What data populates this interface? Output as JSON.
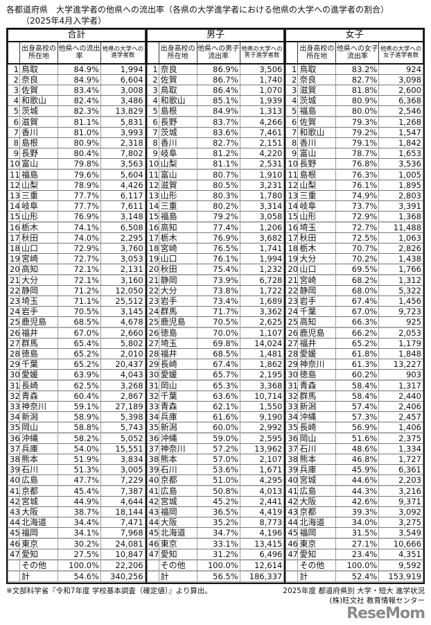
{
  "title": "各都道府県　大学進学者の他県への流出率（各県の大学進学者における他県の大学への進学者の割合）",
  "subtitle": "（2025年4月入学者）",
  "sections": [
    {
      "label": "合計",
      "columns": [
        "出身高校の所在地",
        "他県への流出率",
        "他県の大学への進学者数"
      ],
      "rows": [
        [
          "1",
          "鳥取",
          "84.9%",
          "1,994"
        ],
        [
          "2",
          "奈良",
          "84.9%",
          "6,604"
        ],
        [
          "3",
          "佐賀",
          "83.4%",
          "3,008"
        ],
        [
          "4",
          "和歌山",
          "82.4%",
          "3,486"
        ],
        [
          "5",
          "茨城",
          "82.3%",
          "13,829"
        ],
        [
          "6",
          "滋賀",
          "81.1%",
          "5,831"
        ],
        [
          "7",
          "香川",
          "81.0%",
          "3,993"
        ],
        [
          "8",
          "島根",
          "80.9%",
          "2,318"
        ],
        [
          "9",
          "長野",
          "80.4%",
          "7,802"
        ],
        [
          "10",
          "富山",
          "79.8%",
          "3,563"
        ],
        [
          "11",
          "福島",
          "79.6%",
          "5,604"
        ],
        [
          "12",
          "山梨",
          "78.9%",
          "4,426"
        ],
        [
          "13",
          "三重",
          "77.7%",
          "6,117"
        ],
        [
          "14",
          "岐阜",
          "77.7%",
          "7,611"
        ],
        [
          "15",
          "山形",
          "76.9%",
          "3,148"
        ],
        [
          "16",
          "栃木",
          "74.1%",
          "6,508"
        ],
        [
          "17",
          "秋田",
          "74.0%",
          "2,295"
        ],
        [
          "18",
          "山口",
          "72.9%",
          "3,760"
        ],
        [
          "19",
          "宮崎",
          "72.7%",
          "3,053"
        ],
        [
          "20",
          "高知",
          "72.1%",
          "2,131"
        ],
        [
          "21",
          "大分",
          "72.1%",
          "3,160"
        ],
        [
          "22",
          "静岡",
          "71.2%",
          "12,050"
        ],
        [
          "23",
          "埼玉",
          "71.1%",
          "25,512"
        ],
        [
          "24",
          "岩手",
          "70.5%",
          "3,145"
        ],
        [
          "25",
          "鹿児島",
          "68.5%",
          "4,678"
        ],
        [
          "26",
          "福井",
          "67.0%",
          "2,660"
        ],
        [
          "27",
          "群馬",
          "65.4%",
          "5,802"
        ],
        [
          "28",
          "徳島",
          "65.2%",
          "2,010"
        ],
        [
          "29",
          "千葉",
          "65.2%",
          "20,437"
        ],
        [
          "30",
          "愛媛",
          "63.9%",
          "4,043"
        ],
        [
          "31",
          "長崎",
          "62.5%",
          "3,268"
        ],
        [
          "32",
          "青森",
          "60.4%",
          "2,867"
        ],
        [
          "33",
          "神奈川",
          "59.1%",
          "27,189"
        ],
        [
          "34",
          "新潟",
          "58.9%",
          "5,398"
        ],
        [
          "35",
          "岡山",
          "58.8%",
          "5,743"
        ],
        [
          "36",
          "沖縄",
          "58.2%",
          "5,052"
        ],
        [
          "37",
          "兵庫",
          "54.0%",
          "15,551"
        ],
        [
          "38",
          "熊本",
          "51.9%",
          "3,834"
        ],
        [
          "39",
          "石川",
          "51.3%",
          "3,005"
        ],
        [
          "40",
          "広島",
          "47.7%",
          "7,229"
        ],
        [
          "41",
          "京都",
          "45.4%",
          "7,387"
        ],
        [
          "42",
          "宮城",
          "44.9%",
          "4,644"
        ],
        [
          "43",
          "大阪",
          "38.7%",
          "18,144"
        ],
        [
          "44",
          "北海道",
          "34.4%",
          "7,471"
        ],
        [
          "45",
          "福岡",
          "34.1%",
          "7,968"
        ],
        [
          "46",
          "東京",
          "30.2%",
          "24,081"
        ],
        [
          "47",
          "愛知",
          "27.5%",
          "10,847"
        ],
        [
          "",
          "その他",
          "100.0%",
          "22,206"
        ],
        [
          "",
          "計",
          "54.6%",
          "340,256"
        ]
      ]
    },
    {
      "label": "男子",
      "columns": [
        "出身高校の所在地",
        "他県への男子流出率",
        "他県の大学への男子進学者数"
      ],
      "rows": [
        [
          "1",
          "奈良",
          "86.9%",
          "3,506"
        ],
        [
          "2",
          "佐賀",
          "86.7%",
          "1,740"
        ],
        [
          "3",
          "鳥取",
          "86.4%",
          "1,070"
        ],
        [
          "4",
          "和歌山",
          "85.1%",
          "1,939"
        ],
        [
          "5",
          "島根",
          "84.9%",
          "1,313"
        ],
        [
          "6",
          "長野",
          "83.7%",
          "4,266"
        ],
        [
          "7",
          "茨城",
          "83.6%",
          "7,461"
        ],
        [
          "8",
          "香川",
          "82.7%",
          "2,151"
        ],
        [
          "9",
          "岐阜",
          "81.2%",
          "4,220"
        ],
        [
          "10",
          "山梨",
          "81.1%",
          "2,531"
        ],
        [
          "11",
          "富山",
          "80.7%",
          "1,910"
        ],
        [
          "12",
          "滋賀",
          "80.5%",
          "3,231"
        ],
        [
          "13",
          "山形",
          "80.3%",
          "1,780"
        ],
        [
          "14",
          "三重",
          "80.2%",
          "3,314"
        ],
        [
          "15",
          "福島",
          "79.2%",
          "3,058"
        ],
        [
          "16",
          "高知",
          "77.4%",
          "1,206"
        ],
        [
          "17",
          "栃木",
          "76.9%",
          "3,682"
        ],
        [
          "18",
          "宮崎",
          "76.5%",
          "1,741"
        ],
        [
          "19",
          "山口",
          "76.1%",
          "1,994"
        ],
        [
          "20",
          "秋田",
          "75.4%",
          "1,232"
        ],
        [
          "21",
          "静岡",
          "73.9%",
          "6,728"
        ],
        [
          "22",
          "大分",
          "73.8%",
          "1,722"
        ],
        [
          "23",
          "岩手",
          "73.4%",
          "1,689"
        ],
        [
          "24",
          "群馬",
          "71.7%",
          "3,362"
        ],
        [
          "25",
          "鹿児島",
          "70.5%",
          "2,625"
        ],
        [
          "26",
          "徳島",
          "70.0%",
          "1,107"
        ],
        [
          "27",
          "埼玉",
          "69.8%",
          "14,024"
        ],
        [
          "28",
          "福井",
          "68.5%",
          "1,481"
        ],
        [
          "29",
          "長崎",
          "67.4%",
          "1,862"
        ],
        [
          "30",
          "愛媛",
          "65.7%",
          "2,195"
        ],
        [
          "31",
          "岡山",
          "65.3%",
          "3,368"
        ],
        [
          "32",
          "千葉",
          "63.6%",
          "10,714"
        ],
        [
          "33",
          "青森",
          "62.1%",
          "1,550"
        ],
        [
          "34",
          "兵庫",
          "61.6%",
          "9,190"
        ],
        [
          "35",
          "新潟",
          "60.0%",
          "2,992"
        ],
        [
          "36",
          "沖縄",
          "59.0%",
          "2,595"
        ],
        [
          "37",
          "神奈川",
          "57.2%",
          "13,962"
        ],
        [
          "38",
          "熊本",
          "57.0%",
          "2,107"
        ],
        [
          "39",
          "石川",
          "53.6%",
          "1,671"
        ],
        [
          "40",
          "京都",
          "51.0%",
          "4,295"
        ],
        [
          "41",
          "広島",
          "50.8%",
          "4,013"
        ],
        [
          "42",
          "宮城",
          "45.2%",
          "2,441"
        ],
        [
          "43",
          "福岡",
          "36.5%",
          "4,419"
        ],
        [
          "44",
          "大阪",
          "35.2%",
          "8,773"
        ],
        [
          "45",
          "北海道",
          "34.7%",
          "4,196"
        ],
        [
          "46",
          "東京",
          "33.1%",
          "13,415"
        ],
        [
          "47",
          "愛知",
          "31.2%",
          "6,496"
        ],
        [
          "",
          "その他",
          "100.0%",
          "12,614"
        ],
        [
          "",
          "計",
          "56.5%",
          "186,337"
        ]
      ]
    },
    {
      "label": "女子",
      "columns": [
        "出身高校の所在地",
        "他県への女子流出率",
        "他県の大学への女子進学者数"
      ],
      "rows": [
        [
          "1",
          "鳥取",
          "83.2%",
          "924"
        ],
        [
          "2",
          "奈良",
          "82.7%",
          "3,098"
        ],
        [
          "3",
          "滋賀",
          "81.8%",
          "2,600"
        ],
        [
          "4",
          "茨城",
          "80.9%",
          "6,368"
        ],
        [
          "5",
          "福島",
          "80.0%",
          "2,546"
        ],
        [
          "6",
          "佐賀",
          "79.3%",
          "1,268"
        ],
        [
          "7",
          "和歌山",
          "79.2%",
          "1,547"
        ],
        [
          "8",
          "香川",
          "79.1%",
          "1,842"
        ],
        [
          "9",
          "富山",
          "78.7%",
          "1,653"
        ],
        [
          "10",
          "長野",
          "76.8%",
          "3,536"
        ],
        [
          "11",
          "島根",
          "76.3%",
          "1,005"
        ],
        [
          "12",
          "山梨",
          "76.1%",
          "1,895"
        ],
        [
          "13",
          "三重",
          "74.9%",
          "2,803"
        ],
        [
          "14",
          "岐阜",
          "73.7%",
          "3,391"
        ],
        [
          "15",
          "山形",
          "72.9%",
          "1,368"
        ],
        [
          "16",
          "埼玉",
          "72.7%",
          "11,488"
        ],
        [
          "17",
          "秋田",
          "72.5%",
          "1,063"
        ],
        [
          "18",
          "栃木",
          "70.7%",
          "2,826"
        ],
        [
          "19",
          "大分",
          "70.2%",
          "1,438"
        ],
        [
          "20",
          "山口",
          "69.5%",
          "1,766"
        ],
        [
          "21",
          "宮崎",
          "68.2%",
          "1,312"
        ],
        [
          "22",
          "静岡",
          "68.0%",
          "5,322"
        ],
        [
          "23",
          "岩手",
          "67.4%",
          "1,456"
        ],
        [
          "24",
          "千葉",
          "67.0%",
          "9,723"
        ],
        [
          "25",
          "高知",
          "66.3%",
          "925"
        ],
        [
          "26",
          "鹿児島",
          "66.2%",
          "2,053"
        ],
        [
          "27",
          "福井",
          "65.2%",
          "1,179"
        ],
        [
          "28",
          "愛媛",
          "61.8%",
          "1,848"
        ],
        [
          "29",
          "神奈川",
          "61.3%",
          "13,227"
        ],
        [
          "30",
          "徳島",
          "60.2%",
          "903"
        ],
        [
          "31",
          "青森",
          "58.4%",
          "1,317"
        ],
        [
          "32",
          "群馬",
          "58.4%",
          "2,440"
        ],
        [
          "33",
          "新潟",
          "57.4%",
          "2,406"
        ],
        [
          "34",
          "沖縄",
          "57.3%",
          "2,457"
        ],
        [
          "35",
          "長崎",
          "56.9%",
          "1,406"
        ],
        [
          "36",
          "岡山",
          "51.6%",
          "2,375"
        ],
        [
          "37",
          "石川",
          "48.6%",
          "1,334"
        ],
        [
          "38",
          "熊本",
          "46.8%",
          "1,727"
        ],
        [
          "39",
          "兵庫",
          "45.9%",
          "6,361"
        ],
        [
          "40",
          "宮城",
          "44.6%",
          "2,203"
        ],
        [
          "41",
          "広島",
          "44.3%",
          "3,216"
        ],
        [
          "42",
          "大阪",
          "42.6%",
          "9,371"
        ],
        [
          "43",
          "京都",
          "39.3%",
          "3,092"
        ],
        [
          "44",
          "北海道",
          "34.0%",
          "3,275"
        ],
        [
          "45",
          "福岡",
          "31.5%",
          "3,549"
        ],
        [
          "46",
          "東京",
          "27.1%",
          "10,666"
        ],
        [
          "47",
          "愛知",
          "23.4%",
          "4,351"
        ],
        [
          "",
          "その他",
          "100.0%",
          "9,592"
        ],
        [
          "",
          "計",
          "52.4%",
          "153,919"
        ]
      ]
    }
  ],
  "footer": {
    "source_note": "※文部科学省『令和7年度 学校基本調査（確定値）』より算出。",
    "credit_line1": "2025年度 都道府県別 大学・短大 進学状況",
    "credit_line2": "(株)旺文社 教育情報センター",
    "logo_text": "ReseMom"
  }
}
